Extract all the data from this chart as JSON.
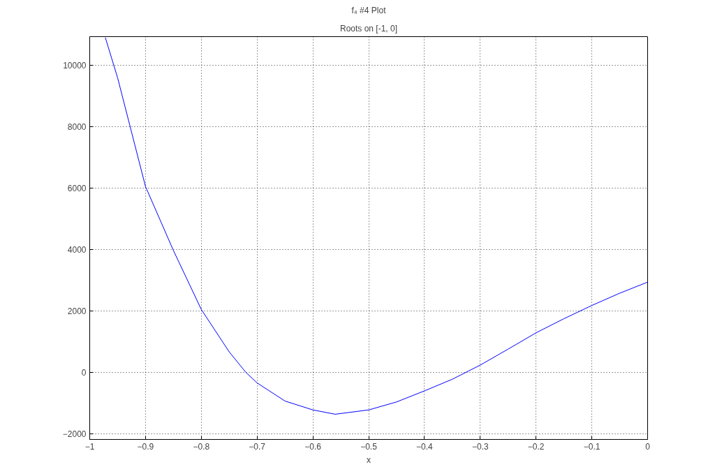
{
  "chart_data": {
    "type": "line",
    "title": "f₄ #4 Plot",
    "subtitle": "Roots on [-1, 0]",
    "xlabel": "x",
    "x": [
      -0.972,
      -0.95,
      -0.9,
      -0.85,
      -0.8,
      -0.75,
      -0.72,
      -0.7,
      -0.65,
      -0.6,
      -0.56,
      -0.5,
      -0.45,
      -0.4,
      -0.35,
      -0.3,
      -0.25,
      -0.2,
      -0.15,
      -0.1,
      -0.05,
      0
    ],
    "series": [
      {
        "color": "#0000ff",
        "values": [
          10900,
          9590,
          6050,
          3970,
          2050,
          670,
          0,
          -340,
          -930,
          -1220,
          -1360,
          -1220,
          -960,
          -600,
          -220,
          240,
          760,
          1290,
          1750,
          2180,
          2580,
          2940
        ]
      }
    ],
    "xlim": [
      -1,
      0
    ],
    "ylim": [
      -2180,
      10930
    ],
    "xticks": [
      -1,
      -0.9,
      -0.8,
      -0.7,
      -0.6,
      -0.5,
      -0.4,
      -0.3,
      -0.2,
      -0.1,
      0
    ],
    "yticks": [
      -2000,
      0,
      2000,
      4000,
      6000,
      8000,
      10000
    ],
    "grid": true,
    "line_style": "solid",
    "marker": "none"
  }
}
